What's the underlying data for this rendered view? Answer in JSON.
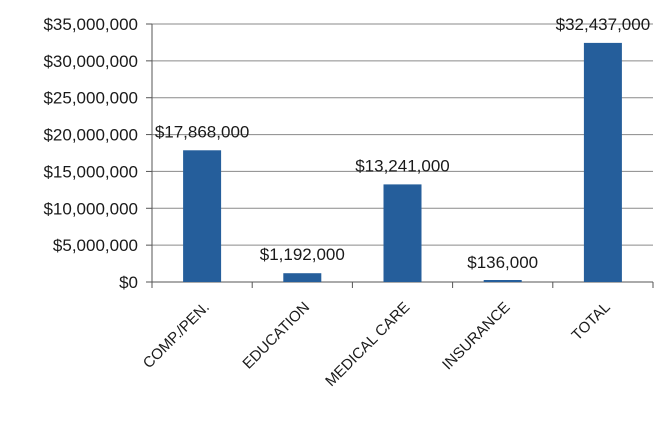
{
  "chart_data": {
    "type": "bar",
    "categories": [
      "COMP./PEN.",
      "EDUCATION",
      "MEDICAL CARE",
      "INSURANCE",
      "TOTAL"
    ],
    "values": [
      17868000,
      1192000,
      13241000,
      136000,
      32437000
    ],
    "data_labels": [
      "$17,868,000",
      "$1,192,000",
      "$13,241,000",
      "$136,000",
      "$32,437,000"
    ],
    "y_ticks": [
      "$0",
      "$5,000,000",
      "$10,000,000",
      "$15,000,000",
      "$20,000,000",
      "$25,000,000",
      "$30,000,000",
      "$35,000,000"
    ],
    "y_tick_values": [
      0,
      5000000,
      10000000,
      15000000,
      20000000,
      25000000,
      30000000,
      35000000
    ],
    "ylim": [
      0,
      35000000
    ],
    "grid": true,
    "legend": "none",
    "bar_color": "#255e9b"
  }
}
